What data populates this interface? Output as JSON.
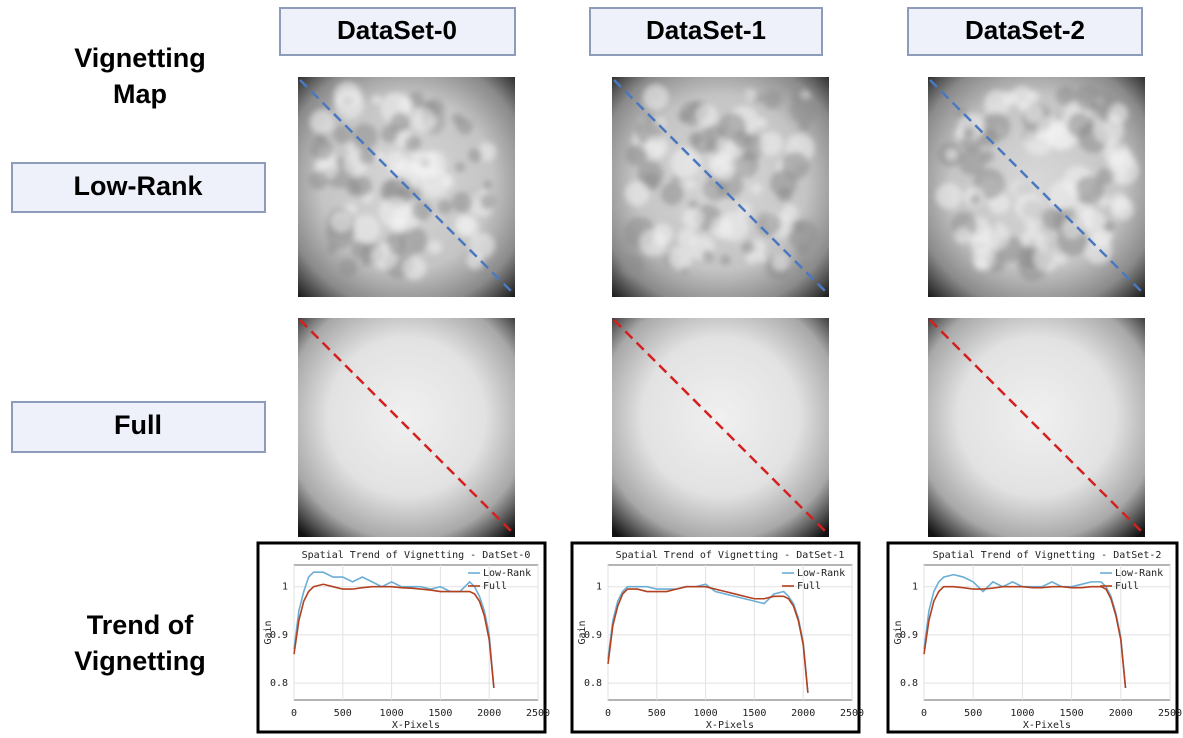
{
  "headers": [
    "DataSet-0",
    "DataSet-1",
    "DataSet-2"
  ],
  "row_labels": {
    "map": [
      "Vignetting",
      "Map"
    ],
    "low_rank": "Low-Rank",
    "full": "Full",
    "trend": [
      "Trend of",
      "Vignetting"
    ]
  },
  "chart_data": [
    {
      "type": "line",
      "title": "Spatial Trend of Vignetting - DatSet-0",
      "x_label": "X-Pixels",
      "y_label": "Gain",
      "x": [
        0,
        50,
        100,
        150,
        200,
        300,
        400,
        500,
        600,
        700,
        800,
        900,
        1000,
        1100,
        1200,
        1300,
        1400,
        1500,
        1600,
        1700,
        1800,
        1850,
        1900,
        1950,
        2000,
        2048
      ],
      "series": [
        {
          "name": "Low-Rank",
          "color": "#6aaed6",
          "values": [
            0.87,
            0.95,
            0.99,
            1.02,
            1.03,
            1.03,
            1.02,
            1.02,
            1.01,
            1.02,
            1.01,
            1.0,
            1.01,
            1.0,
            1.0,
            1.0,
            0.995,
            1.0,
            0.99,
            0.99,
            1.01,
            1.0,
            0.98,
            0.95,
            0.9,
            0.79
          ]
        },
        {
          "name": "Full",
          "color": "#b3401f",
          "values": [
            0.86,
            0.93,
            0.97,
            0.99,
            1.0,
            1.005,
            1.0,
            0.995,
            0.995,
            0.998,
            1.0,
            1.0,
            1.0,
            0.998,
            0.997,
            0.995,
            0.993,
            0.99,
            0.99,
            0.99,
            0.99,
            0.985,
            0.97,
            0.94,
            0.89,
            0.79
          ]
        }
      ],
      "xlim": [
        0,
        2500
      ],
      "xticks": [
        0,
        500,
        1000,
        1500,
        2000,
        2500
      ],
      "ylim": [
        0.765,
        1.045
      ],
      "yticks": [
        0.8,
        0.9,
        1
      ],
      "grid": true,
      "legend": "upper right"
    },
    {
      "type": "line",
      "title": "Spatial Trend of Vignetting - DatSet-1",
      "x_label": "X-Pixels",
      "y_label": "Gain",
      "x": [
        0,
        50,
        100,
        150,
        200,
        300,
        400,
        500,
        600,
        700,
        800,
        900,
        1000,
        1100,
        1200,
        1300,
        1400,
        1500,
        1600,
        1700,
        1800,
        1850,
        1900,
        1950,
        2000,
        2048
      ],
      "series": [
        {
          "name": "Low-Rank",
          "color": "#6aaed6",
          "values": [
            0.85,
            0.93,
            0.97,
            0.99,
            1.0,
            1.0,
            1.0,
            0.995,
            0.995,
            0.995,
            1.0,
            1.0,
            1.005,
            0.99,
            0.985,
            0.98,
            0.975,
            0.97,
            0.965,
            0.985,
            0.99,
            0.98,
            0.965,
            0.935,
            0.885,
            0.78
          ]
        },
        {
          "name": "Full",
          "color": "#b3401f",
          "values": [
            0.84,
            0.92,
            0.96,
            0.985,
            0.995,
            0.995,
            0.99,
            0.99,
            0.99,
            0.995,
            1.0,
            1.0,
            1.0,
            0.995,
            0.99,
            0.985,
            0.98,
            0.975,
            0.975,
            0.98,
            0.98,
            0.975,
            0.96,
            0.93,
            0.88,
            0.78
          ]
        }
      ],
      "xlim": [
        0,
        2500
      ],
      "xticks": [
        0,
        500,
        1000,
        1500,
        2000,
        2500
      ],
      "ylim": [
        0.765,
        1.045
      ],
      "yticks": [
        0.8,
        0.9,
        1
      ],
      "grid": true,
      "legend": "upper right"
    },
    {
      "type": "line",
      "title": "Spatial Trend of Vignetting - DatSet-2",
      "x_label": "X-Pixels",
      "y_label": "Gain",
      "x": [
        0,
        50,
        100,
        150,
        200,
        300,
        400,
        500,
        600,
        700,
        800,
        900,
        1000,
        1100,
        1200,
        1300,
        1400,
        1500,
        1600,
        1700,
        1800,
        1850,
        1900,
        1950,
        2000,
        2048
      ],
      "series": [
        {
          "name": "Low-Rank",
          "color": "#6aaed6",
          "values": [
            0.87,
            0.95,
            0.99,
            1.01,
            1.02,
            1.025,
            1.02,
            1.01,
            0.99,
            1.01,
            1.0,
            1.01,
            1.0,
            1.0,
            1.0,
            1.01,
            1.0,
            1.0,
            1.005,
            1.01,
            1.01,
            1.0,
            0.98,
            0.945,
            0.895,
            0.79
          ]
        },
        {
          "name": "Full",
          "color": "#b3401f",
          "values": [
            0.86,
            0.93,
            0.97,
            0.99,
            1.0,
            1.0,
            0.998,
            0.995,
            0.995,
            0.997,
            1.0,
            1.0,
            1.0,
            0.998,
            0.998,
            1.0,
            1.0,
            0.998,
            0.998,
            1.0,
            1.0,
            0.995,
            0.975,
            0.94,
            0.89,
            0.79
          ]
        }
      ],
      "xlim": [
        0,
        2500
      ],
      "xticks": [
        0,
        500,
        1000,
        1500,
        2000,
        2500
      ],
      "ylim": [
        0.765,
        1.045
      ],
      "yticks": [
        0.8,
        0.9,
        1
      ],
      "grid": true,
      "legend": "upper right"
    }
  ]
}
